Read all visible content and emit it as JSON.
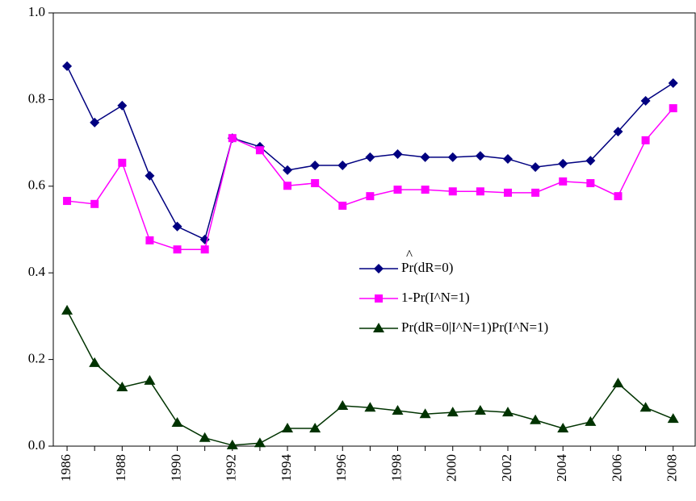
{
  "chart_data": {
    "type": "line",
    "x": [
      1986,
      1987,
      1988,
      1989,
      1990,
      1991,
      1992,
      1993,
      1994,
      1995,
      1996,
      1997,
      1998,
      1999,
      2000,
      2001,
      2002,
      2003,
      2004,
      2005,
      2006,
      2007,
      2008
    ],
    "series": [
      {
        "name": "Pr(dR=0)",
        "accent": "^",
        "color": "#000080",
        "marker": "diamond",
        "values": [
          0.877,
          0.747,
          0.786,
          0.624,
          0.507,
          0.477,
          0.711,
          0.691,
          0.637,
          0.648,
          0.648,
          0.667,
          0.674,
          0.667,
          0.667,
          0.67,
          0.663,
          0.644,
          0.652,
          0.659,
          0.726,
          0.797,
          0.838
        ]
      },
      {
        "name": "1-Pr(I^N=1)",
        "color": "#ff00ff",
        "marker": "square",
        "values": [
          0.566,
          0.559,
          0.654,
          0.475,
          0.454,
          0.454,
          0.711,
          0.683,
          0.601,
          0.607,
          0.555,
          0.577,
          0.592,
          0.592,
          0.588,
          0.588,
          0.585,
          0.585,
          0.611,
          0.607,
          0.577,
          0.706,
          0.78
        ]
      },
      {
        "name": "Pr(dR=0|I^N=1)Pr(I^N=1)",
        "color": "#003300",
        "marker": "triangle",
        "values": [
          0.313,
          0.192,
          0.136,
          0.151,
          0.054,
          0.019,
          0.002,
          0.007,
          0.041,
          0.041,
          0.093,
          0.089,
          0.082,
          0.074,
          0.078,
          0.082,
          0.078,
          0.06,
          0.041,
          0.056,
          0.145,
          0.089,
          0.063
        ]
      }
    ],
    "xlim": [
      1985.5,
      2008.8
    ],
    "xticks": [
      1986,
      1988,
      1990,
      1992,
      1994,
      1996,
      1998,
      2000,
      2002,
      2004,
      2006,
      2008
    ],
    "ylim": [
      0,
      1
    ],
    "yticks": [
      {
        "value": 0,
        "label": "0.0"
      },
      0.2,
      0.4,
      0.6,
      0.8,
      {
        "value": 1,
        "label": "1.0"
      }
    ],
    "grid": false
  }
}
